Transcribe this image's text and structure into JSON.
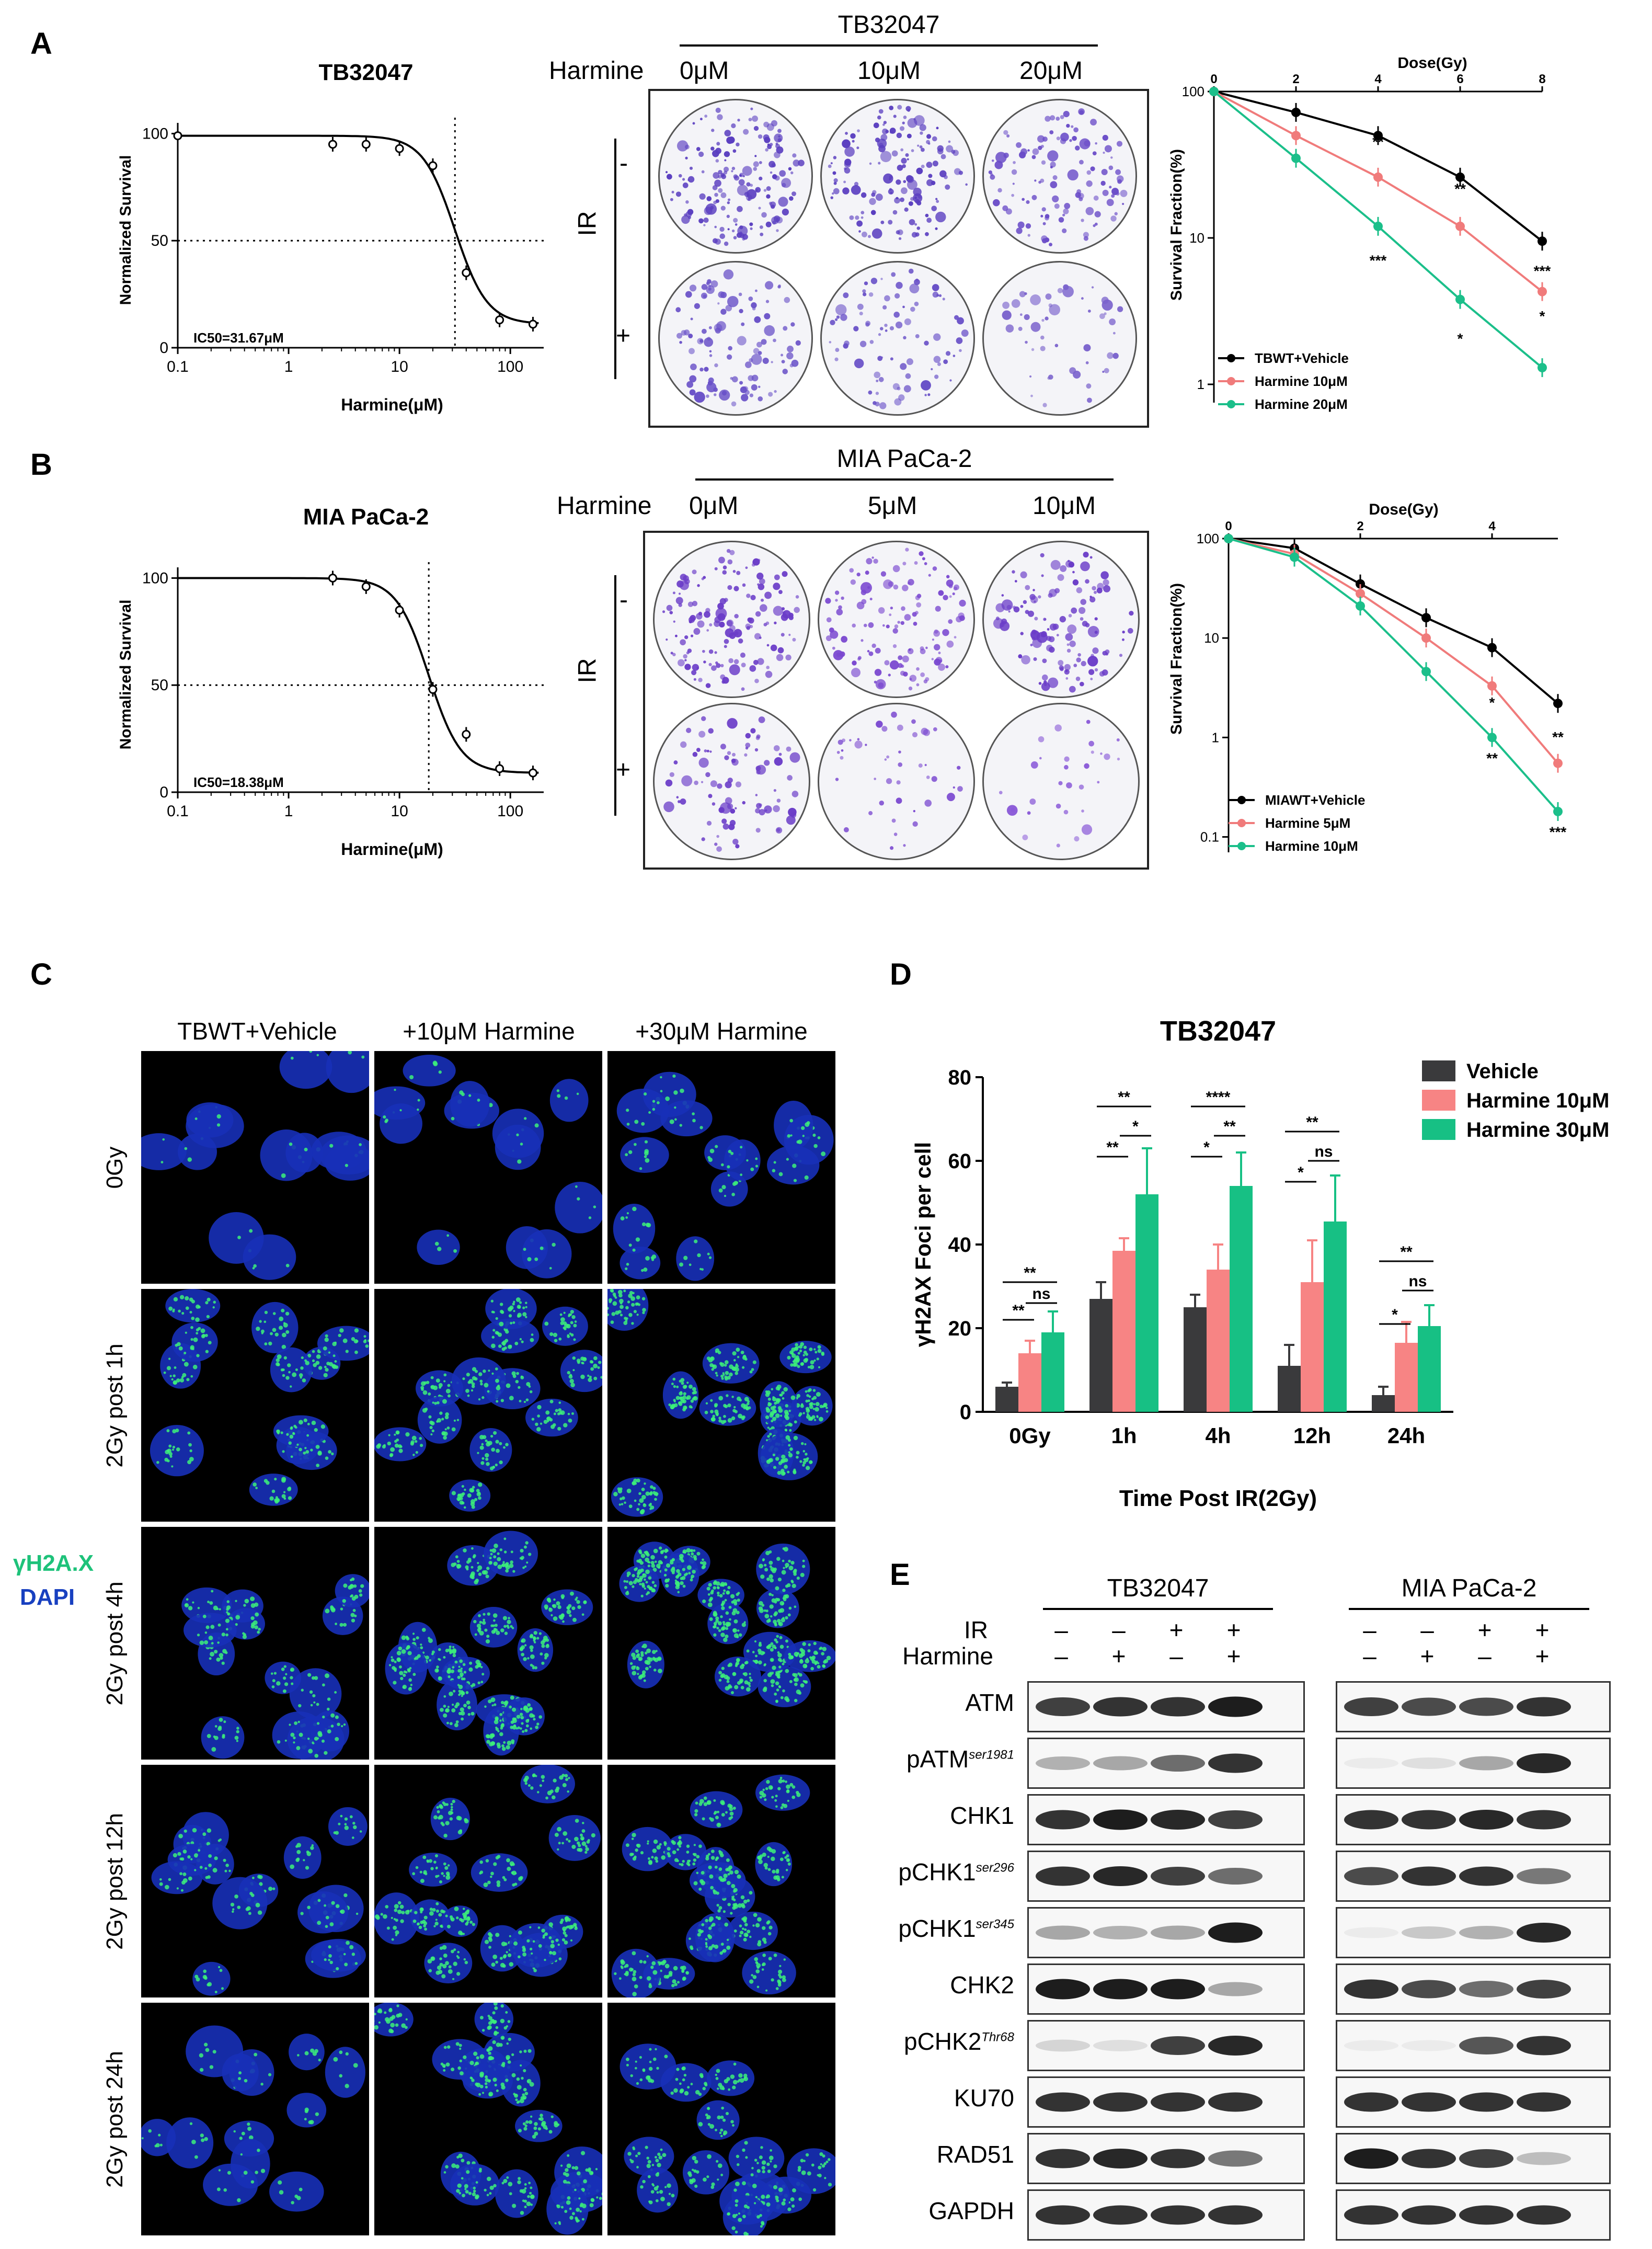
{
  "panels": {
    "A": {
      "letter": "A",
      "ic50_plot": {
        "title": "TB32047",
        "ylabel": "Normalized Survival",
        "xlabel": "Harmine(μM)",
        "xticks": [
          "0.1",
          "1",
          "10",
          "100"
        ],
        "yticks": [
          "0",
          "50",
          "100"
        ],
        "note": "IC50=31.67μM"
      },
      "colony": {
        "cell_line": "TB32047",
        "drug_label": "Harmine",
        "doses": [
          "0μM",
          "10μM",
          "20μM"
        ],
        "ir_label": "IR",
        "ir_rows": [
          "-",
          "+"
        ]
      },
      "survival_plot": {
        "xlabel": "Dose(Gy)",
        "ylabel": "Survival Fraction(%)",
        "xticks": [
          "0",
          "2",
          "4",
          "6",
          "8"
        ],
        "yticks": [
          "100",
          "10",
          "1"
        ],
        "legend": [
          "TBWT+Vehicle",
          "Harmine 10μM",
          "Harmine 20μM"
        ],
        "sig": [
          "**",
          "**",
          "***",
          "***",
          "*",
          "*"
        ]
      }
    },
    "B": {
      "letter": "B",
      "ic50_plot": {
        "title": "MIA PaCa-2",
        "ylabel": "Normalized Survival",
        "xlabel": "Harmine(μM)",
        "xticks": [
          "0.1",
          "1",
          "10",
          "100"
        ],
        "yticks": [
          "0",
          "50",
          "100"
        ],
        "note": "IC50=18.38μM"
      },
      "colony": {
        "cell_line": "MIA PaCa-2",
        "drug_label": "Harmine",
        "doses": [
          "0μM",
          "5μM",
          "10μM"
        ],
        "ir_label": "IR",
        "ir_rows": [
          "-",
          "+"
        ]
      },
      "survival_plot": {
        "xlabel": "Dose(Gy)",
        "ylabel": "Survival Fraction(%)",
        "xticks": [
          "0",
          "2",
          "4"
        ],
        "yticks": [
          "100",
          "10",
          "1",
          "0.1"
        ],
        "legend": [
          "MIAWT+Vehicle",
          "Harmine 5μM",
          "Harmine 10μM"
        ],
        "sig": [
          "*",
          "**",
          "**",
          "***"
        ]
      }
    },
    "C": {
      "letter": "C",
      "columns": [
        "TBWT+Vehicle",
        "+10μM Harmine",
        "+30μM Harmine"
      ],
      "rows": [
        "0Gy",
        "2Gy post 1h",
        "2Gy post 4h",
        "2Gy post 12h",
        "2Gy post 24h"
      ],
      "stain_green": "γH2A.X",
      "stain_blue": "DAPI"
    },
    "D": {
      "letter": "D",
      "sig_labels": [
        "**",
        "**",
        "ns",
        "**",
        "**",
        "*",
        "****",
        "*",
        "**",
        "**",
        "*",
        "ns",
        "**",
        "*",
        "ns"
      ]
    },
    "E": {
      "letter": "E",
      "groups": [
        "TB32047",
        "MIA PaCa-2"
      ],
      "ir_label": "IR",
      "harmine_label": "Harmine",
      "ir_signs": [
        "–",
        "–",
        "+",
        "+"
      ],
      "harmine_signs": [
        "–",
        "+",
        "–",
        "+"
      ],
      "proteins": [
        {
          "name": "ATM",
          "sup": ""
        },
        {
          "name": "pATM",
          "sup": "ser1981"
        },
        {
          "name": "CHK1",
          "sup": ""
        },
        {
          "name": "pCHK1",
          "sup": "ser296"
        },
        {
          "name": "pCHK1",
          "sup": "ser345"
        },
        {
          "name": "CHK2",
          "sup": ""
        },
        {
          "name": "pCHK2",
          "sup": "Thr68"
        },
        {
          "name": "KU70",
          "sup": ""
        },
        {
          "name": "RAD51",
          "sup": ""
        },
        {
          "name": "GAPDH",
          "sup": ""
        }
      ]
    }
  },
  "chart_data": [
    {
      "type": "line",
      "title": "TB32047",
      "xlabel": "Harmine(μM)",
      "ylabel": "Normalized Survival",
      "xscale": "log",
      "xlim": [
        0.1,
        200
      ],
      "ylim": [
        0,
        105
      ],
      "series": [
        {
          "x": [
            0.1,
            2.5,
            5,
            10,
            20,
            40,
            80,
            160
          ],
          "y": [
            99,
            95,
            95,
            93,
            85,
            35,
            13,
            11
          ]
        }
      ],
      "ic50": 31.67
    },
    {
      "type": "line",
      "title": "MIA PaCa-2",
      "xlabel": "Harmine(μM)",
      "ylabel": "Normalized Survival",
      "xscale": "log",
      "xlim": [
        0.1,
        200
      ],
      "ylim": [
        0,
        105
      ],
      "series": [
        {
          "x": [
            2.5,
            5,
            10,
            20,
            40,
            80,
            160
          ],
          "y": [
            100,
            96,
            85,
            48,
            27,
            11,
            9
          ]
        }
      ],
      "ic50": 18.38
    },
    {
      "type": "line",
      "xlabel": "Dose(Gy)",
      "ylabel": "Survival Fraction(%)",
      "yscale": "log",
      "xlim": [
        0,
        8
      ],
      "ylim": [
        0.8,
        100
      ],
      "series": [
        {
          "name": "TBWT+Vehicle",
          "color": "#000000",
          "x": [
            0,
            2,
            4,
            6,
            8
          ],
          "y": [
            100,
            72,
            50,
            26,
            9.5
          ]
        },
        {
          "name": "Harmine 10μM",
          "color": "#f07b7b",
          "x": [
            0,
            2,
            4,
            6,
            8
          ],
          "y": [
            100,
            50,
            26,
            12,
            4.3
          ]
        },
        {
          "name": "Harmine 20μM",
          "color": "#1bbf8a",
          "x": [
            0,
            2,
            4,
            6,
            8
          ],
          "y": [
            100,
            35,
            12,
            3.8,
            1.3
          ]
        }
      ]
    },
    {
      "type": "line",
      "xlabel": "Dose(Gy)",
      "ylabel": "Survival Fraction(%)",
      "yscale": "log",
      "xlim": [
        0,
        5
      ],
      "ylim": [
        0.07,
        100
      ],
      "series": [
        {
          "name": "MIAWT+Vehicle",
          "color": "#000000",
          "x": [
            0,
            1,
            2,
            3,
            4,
            5
          ],
          "y": [
            100,
            80,
            35,
            16,
            8,
            2.2
          ]
        },
        {
          "name": "Harmine 5μM",
          "color": "#f07b7b",
          "x": [
            0,
            1,
            2,
            3,
            4,
            5
          ],
          "y": [
            100,
            70,
            28,
            10,
            3.3,
            0.55
          ]
        },
        {
          "name": "Harmine 10μM",
          "color": "#1bbf8a",
          "x": [
            0,
            1,
            2,
            3,
            4,
            5
          ],
          "y": [
            100,
            65,
            21,
            4.6,
            1.0,
            0.18
          ]
        }
      ]
    },
    {
      "type": "bar",
      "title": "TB32047",
      "xlabel": "Time Post IR(2Gy)",
      "ylabel": "γH2AX Foci per cell",
      "ylim": [
        0,
        80
      ],
      "yticks": [
        "0",
        "20",
        "40",
        "60",
        "80"
      ],
      "categories": [
        "0Gy",
        "1h",
        "4h",
        "12h",
        "24h"
      ],
      "series": [
        {
          "name": "Vehicle",
          "color": "#3a3a3c",
          "values": [
            6,
            27,
            25,
            11,
            4
          ],
          "errors": [
            1,
            4,
            3,
            5,
            2
          ]
        },
        {
          "name": "Harmine 10μM",
          "color": "#f78484",
          "values": [
            14,
            38.5,
            34,
            31,
            16.5
          ],
          "errors": [
            3,
            3,
            6,
            10,
            5
          ]
        },
        {
          "name": "Harmine 30μM",
          "color": "#17c084",
          "values": [
            19,
            52,
            54,
            45.5,
            20.5
          ],
          "errors": [
            5,
            11,
            8,
            11,
            5
          ]
        }
      ]
    }
  ]
}
